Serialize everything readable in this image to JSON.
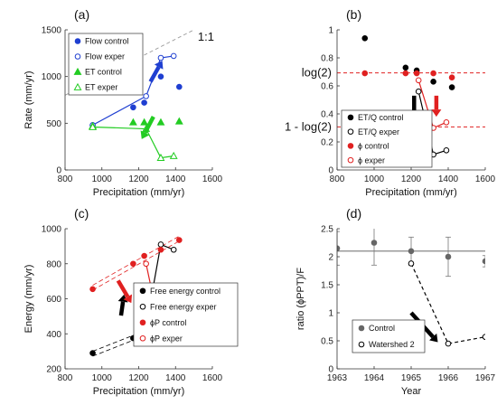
{
  "chart_data": [
    {
      "panel": "(a)",
      "type": "scatter",
      "xlabel": "Precipitation (mm/yr)",
      "ylabel": "Rate (mm/yr)",
      "xlim": [
        800,
        1600
      ],
      "ylim": [
        0,
        1500
      ],
      "xticks": [
        "800",
        "1000",
        "1200",
        "1400",
        "1600"
      ],
      "yticks": [
        "0",
        "500",
        "1000",
        "1500"
      ],
      "legend_position": "top-left",
      "annotation": "1:1",
      "one_to_one_line": true,
      "series": [
        {
          "name": "Flow control",
          "x": [
            950,
            1170,
            1230,
            1320,
            1420
          ],
          "y": [
            480,
            670,
            720,
            1000,
            890
          ],
          "marker": "filled-circle",
          "color": "#1f3fd1"
        },
        {
          "name": "Flow exper",
          "x": [
            950,
            1240,
            1320,
            1390
          ],
          "y": [
            480,
            790,
            1200,
            1220
          ],
          "marker": "open-circle",
          "color": "#1f3fd1",
          "connected": true
        },
        {
          "name": "ET control",
          "x": [
            950,
            1170,
            1230,
            1320,
            1420
          ],
          "y": [
            470,
            510,
            510,
            510,
            520
          ],
          "marker": "filled-triangle",
          "color": "#22cc22"
        },
        {
          "name": "ET exper",
          "x": [
            950,
            1240,
            1320,
            1390
          ],
          "y": [
            460,
            440,
            130,
            150
          ],
          "marker": "open-triangle",
          "color": "#22cc22",
          "connected": true
        }
      ],
      "arrows": [
        {
          "color": "#1f3fd1",
          "direction": "up"
        },
        {
          "color": "#22cc22",
          "direction": "down"
        }
      ]
    },
    {
      "panel": "(b)",
      "type": "scatter",
      "xlabel": "Precipitation (mm/yr)",
      "xlim": [
        800,
        1600
      ],
      "ylim": [
        0,
        1
      ],
      "xticks": [
        "800",
        "1000",
        "1200",
        "1400",
        "1600"
      ],
      "yticks": [
        "0",
        "0.2",
        "0.4",
        "0.6",
        "0.8",
        "1"
      ],
      "legend_position": "bottom-left",
      "reference_lines": [
        {
          "label": "log(2)",
          "value": 0.693,
          "style": "dashed",
          "color": "#e02020"
        },
        {
          "label": "1 - log(2)",
          "value": 0.307,
          "style": "dashed",
          "color": "#e02020"
        }
      ],
      "series": [
        {
          "name": "ET/Q control",
          "x": [
            950,
            1170,
            1230,
            1320,
            1420
          ],
          "y": [
            0.94,
            0.73,
            0.71,
            0.63,
            0.59
          ],
          "marker": "filled-circle",
          "color": "#000000"
        },
        {
          "name": "ET/Q exper",
          "x": [
            1240,
            1320,
            1390
          ],
          "y": [
            0.56,
            0.11,
            0.14
          ],
          "marker": "open-circle",
          "color": "#000000",
          "connected": true
        },
        {
          "name": "ϕ control",
          "x": [
            950,
            1170,
            1230,
            1320,
            1420
          ],
          "y": [
            0.69,
            0.69,
            0.69,
            0.69,
            0.66
          ],
          "marker": "filled-circle",
          "color": "#e02020"
        },
        {
          "name": "ϕ exper",
          "x": [
            1240,
            1320,
            1390
          ],
          "y": [
            0.64,
            0.3,
            0.34
          ],
          "marker": "open-circle",
          "color": "#e02020",
          "connected": true
        }
      ],
      "arrows": [
        {
          "color": "#000000",
          "direction": "down"
        },
        {
          "color": "#e02020",
          "direction": "down"
        }
      ]
    },
    {
      "panel": "(c)",
      "type": "scatter",
      "xlabel": "Precipitation (mm/yr)",
      "ylabel": "Energy (mm/yr)",
      "xlim": [
        800,
        1600
      ],
      "ylim": [
        200,
        1000
      ],
      "xticks": [
        "800",
        "1000",
        "1200",
        "1400",
        "1600"
      ],
      "yticks": [
        "200",
        "400",
        "600",
        "800",
        "1000"
      ],
      "legend_position": "top-right",
      "series": [
        {
          "name": "Free energy control",
          "x": [
            950,
            1170,
            1230,
            1320,
            1420
          ],
          "y": [
            290,
            375,
            395,
            440,
            485
          ],
          "marker": "filled-circle",
          "color": "#000000"
        },
        {
          "name": "Free energy exper",
          "x": [
            1240,
            1320,
            1390
          ],
          "y": [
            440,
            910,
            880
          ],
          "marker": "open-circle",
          "color": "#000000",
          "connected": true
        },
        {
          "name": "ϕP control",
          "x": [
            950,
            1170,
            1230,
            1320,
            1420
          ],
          "y": [
            655,
            800,
            845,
            880,
            935
          ],
          "marker": "filled-circle",
          "color": "#e02020"
        },
        {
          "name": "ϕP exper",
          "x": [
            1240,
            1320,
            1390
          ],
          "y": [
            800,
            405,
            500
          ],
          "marker": "open-circle",
          "color": "#e02020",
          "connected": true
        }
      ],
      "arrows": [
        {
          "color": "#000000",
          "direction": "up"
        },
        {
          "color": "#e02020",
          "direction": "down"
        }
      ]
    },
    {
      "panel": "(d)",
      "type": "scatter",
      "xlabel": "Year",
      "ylabel": "ratio (ϕPPT)/F",
      "xlim": [
        1963,
        1967
      ],
      "ylim": [
        0,
        2.5
      ],
      "xticks": [
        "1963",
        "1964",
        "1965",
        "1966",
        "1967"
      ],
      "yticks": [
        "0",
        "0.5",
        "1",
        "1.5",
        "2",
        "2.5"
      ],
      "legend_position": "bottom-center",
      "horizontal_line": 2.1,
      "series": [
        {
          "name": "Control",
          "x": [
            1963,
            1964,
            1965,
            1966,
            1967
          ],
          "y": [
            2.15,
            2.25,
            2.1,
            2.0,
            1.92
          ],
          "error": [
            0.3,
            0.4,
            0.25,
            0.35,
            0.1
          ],
          "marker": "filled-circle",
          "color": "#666666"
        },
        {
          "name": "Watershed 2",
          "x": [
            1965,
            1966,
            1967
          ],
          "y": [
            1.88,
            0.45,
            0.57
          ],
          "marker": "open-circle",
          "color": "#000000",
          "connected": true,
          "dashed": true
        }
      ],
      "arrows": [
        {
          "color": "#000000",
          "direction": "down"
        }
      ]
    }
  ]
}
